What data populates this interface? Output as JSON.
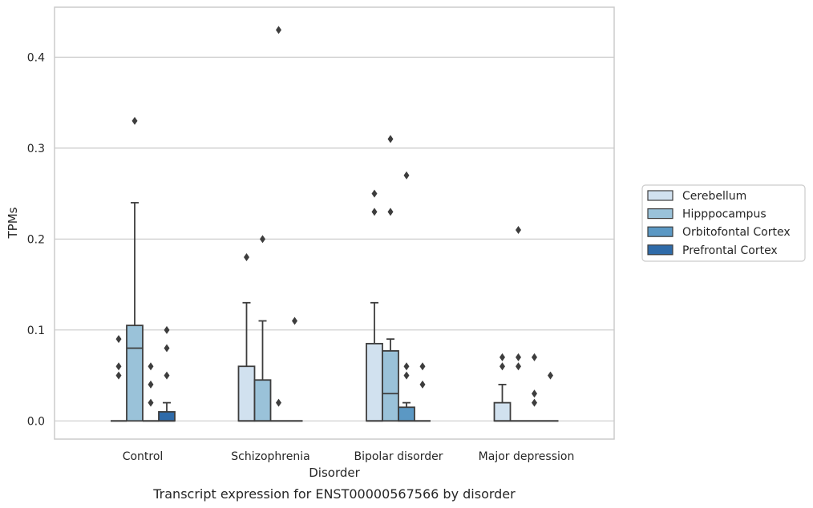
{
  "chart_data": {
    "type": "box",
    "caption": "Transcript expression for ENST00000567566 by disorder",
    "xlabel": "Disorder",
    "ylabel": "TPMs",
    "ylim": [
      -0.02,
      0.455
    ],
    "yticks": [
      0.0,
      0.1,
      0.2,
      0.3,
      0.4
    ],
    "ytick_labels": [
      "0.0",
      "0.1",
      "0.2",
      "0.3",
      "0.4"
    ],
    "grid": true,
    "legend_position": "right",
    "categories": [
      "Control",
      "Schizophrenia",
      "Bipolar disorder",
      "Major depression"
    ],
    "series": [
      {
        "name": "Cerebellum",
        "color": "#d1e1ef",
        "boxes": [
          {
            "q1": 0,
            "median": 0,
            "q3": 0,
            "whislo": 0,
            "whishi": 0,
            "fliers": [
              0.05,
              0.06,
              0.09
            ]
          },
          {
            "q1": 0,
            "median": 0,
            "q3": 0.06,
            "whislo": 0,
            "whishi": 0.13,
            "fliers": [
              0.18
            ]
          },
          {
            "q1": 0,
            "median": 0,
            "q3": 0.085,
            "whislo": 0,
            "whishi": 0.13,
            "fliers": [
              0.23,
              0.25
            ]
          },
          {
            "q1": 0,
            "median": 0,
            "q3": 0.02,
            "whislo": 0,
            "whishi": 0.04,
            "fliers": [
              0.06,
              0.07
            ]
          }
        ]
      },
      {
        "name": "Hipppocampus",
        "color": "#9ac2d9",
        "boxes": [
          {
            "q1": 0,
            "median": 0.08,
            "q3": 0.105,
            "whislo": 0,
            "whishi": 0.24,
            "fliers": [
              0.33
            ]
          },
          {
            "q1": 0,
            "median": 0,
            "q3": 0.045,
            "whislo": 0,
            "whishi": 0.11,
            "fliers": [
              0.2
            ]
          },
          {
            "q1": 0,
            "median": 0.03,
            "q3": 0.077,
            "whislo": 0,
            "whishi": 0.09,
            "fliers": [
              0.23,
              0.31
            ]
          },
          {
            "q1": 0,
            "median": 0,
            "q3": 0,
            "whislo": 0,
            "whishi": 0,
            "fliers": [
              0.06,
              0.07,
              0.21
            ]
          }
        ]
      },
      {
        "name": "Orbitofontal Cortex",
        "color": "#5b98c4",
        "boxes": [
          {
            "q1": 0,
            "median": 0,
            "q3": 0,
            "whislo": 0,
            "whishi": 0,
            "fliers": [
              0.02,
              0.04,
              0.06
            ]
          },
          {
            "q1": 0,
            "median": 0,
            "q3": 0,
            "whislo": 0,
            "whishi": 0,
            "fliers": [
              0.02,
              0.43
            ]
          },
          {
            "q1": 0,
            "median": 0,
            "q3": 0.015,
            "whislo": 0,
            "whishi": 0.02,
            "fliers": [
              0.05,
              0.06,
              0.27
            ]
          },
          {
            "q1": 0,
            "median": 0,
            "q3": 0,
            "whislo": 0,
            "whishi": 0,
            "fliers": [
              0.02,
              0.03,
              0.07
            ]
          }
        ]
      },
      {
        "name": "Prefrontal Cortex",
        "color": "#2f6ba9",
        "boxes": [
          {
            "q1": 0,
            "median": 0,
            "q3": 0.01,
            "whislo": 0,
            "whishi": 0.02,
            "fliers": [
              0.05,
              0.08,
              0.1
            ]
          },
          {
            "q1": 0,
            "median": 0,
            "q3": 0,
            "whislo": 0,
            "whishi": 0,
            "fliers": [
              0.11
            ]
          },
          {
            "q1": 0,
            "median": 0,
            "q3": 0,
            "whislo": 0,
            "whishi": 0,
            "fliers": [
              0.04,
              0.06
            ]
          },
          {
            "q1": 0,
            "median": 0,
            "q3": 0,
            "whislo": 0,
            "whishi": 0,
            "fliers": [
              0.05
            ]
          }
        ]
      }
    ]
  }
}
